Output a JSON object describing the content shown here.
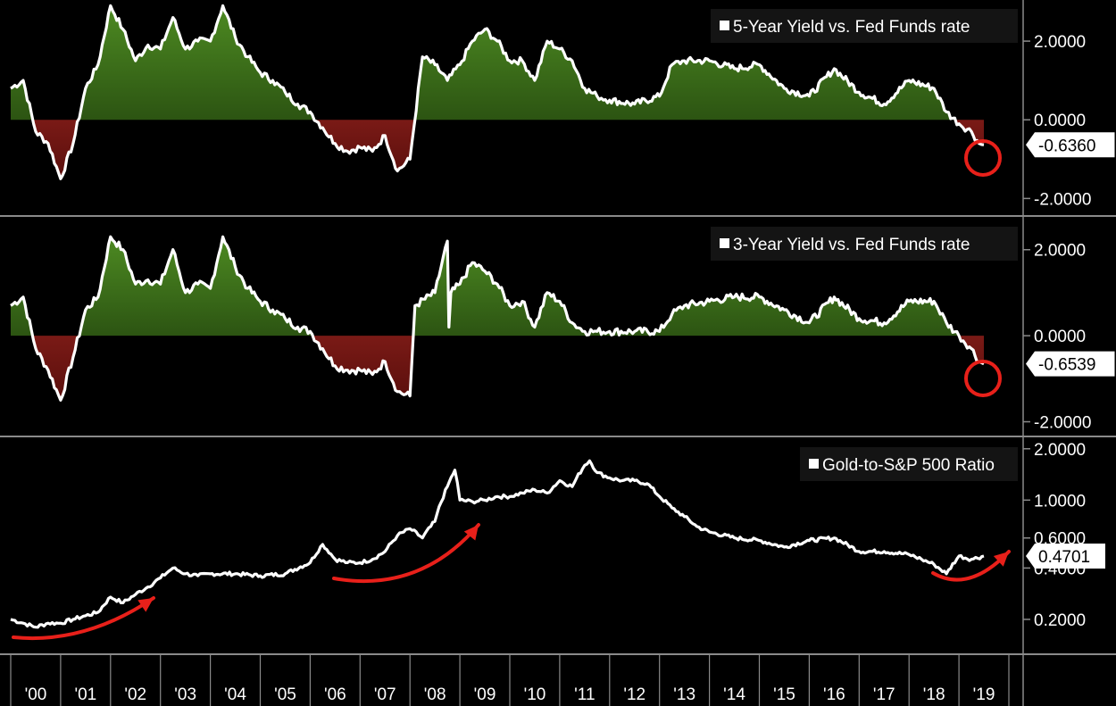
{
  "chart_data": [
    {
      "type": "area",
      "title": "5-Year Yield vs. Fed Funds rate",
      "ylim": [
        -2.4,
        3.0
      ],
      "y_ticks": [
        "2.0000",
        "0.0000",
        "-2.0000"
      ],
      "y_tick_values": [
        2,
        0,
        -2
      ],
      "last_value": -0.636,
      "last_label": "-0.6360",
      "x": [
        2000.0,
        2000.25,
        2000.5,
        2000.75,
        2001.0,
        2001.25,
        2001.5,
        2001.75,
        2002.0,
        2002.25,
        2002.5,
        2002.75,
        2003.0,
        2003.25,
        2003.5,
        2003.75,
        2004.0,
        2004.25,
        2004.5,
        2004.75,
        2005.0,
        2005.25,
        2005.5,
        2005.75,
        2006.0,
        2006.25,
        2006.5,
        2006.75,
        2007.0,
        2007.25,
        2007.5,
        2007.75,
        2008.0,
        2008.25,
        2008.5,
        2008.75,
        2009.0,
        2009.25,
        2009.5,
        2009.75,
        2010.0,
        2010.25,
        2010.5,
        2010.75,
        2011.0,
        2011.25,
        2011.5,
        2011.75,
        2012.0,
        2012.5,
        2013.0,
        2013.25,
        2013.5,
        2014.0,
        2014.5,
        2015.0,
        2015.5,
        2016.0,
        2016.5,
        2017.0,
        2017.5,
        2018.0,
        2018.5,
        2018.75,
        2019.0,
        2019.25,
        2019.4,
        2019.5
      ],
      "values": [
        0.8,
        1.0,
        -0.3,
        -0.6,
        -1.5,
        -0.6,
        0.8,
        1.4,
        2.9,
        2.3,
        1.5,
        1.9,
        1.8,
        2.6,
        1.8,
        2.0,
        2.0,
        2.9,
        2.1,
        1.6,
        1.2,
        1.0,
        0.7,
        0.4,
        0.2,
        -0.2,
        -0.6,
        -0.8,
        -0.7,
        -0.8,
        -0.4,
        -1.3,
        -1.0,
        1.6,
        1.4,
        1.0,
        1.4,
        2.0,
        2.3,
        2.0,
        1.5,
        1.5,
        1.0,
        2.0,
        1.8,
        1.5,
        0.8,
        0.6,
        0.5,
        0.4,
        0.6,
        1.4,
        1.5,
        1.5,
        1.3,
        1.4,
        0.8,
        0.6,
        1.3,
        0.7,
        0.4,
        1.0,
        0.8,
        0.2,
        -0.1,
        -0.3,
        -0.6,
        -0.636
      ]
    },
    {
      "type": "area",
      "title": "3-Year Yield vs. Fed Funds rate",
      "ylim": [
        -2.3,
        2.7
      ],
      "y_ticks": [
        "2.0000",
        "0.0000",
        "-2.0000"
      ],
      "y_tick_values": [
        2,
        0,
        -2
      ],
      "last_value": -0.6539,
      "last_label": "-0.6539",
      "x": [
        2000.0,
        2000.25,
        2000.5,
        2000.75,
        2001.0,
        2001.25,
        2001.5,
        2001.75,
        2002.0,
        2002.25,
        2002.5,
        2002.75,
        2003.0,
        2003.25,
        2003.5,
        2003.75,
        2004.0,
        2004.25,
        2004.5,
        2004.75,
        2005.0,
        2005.25,
        2005.5,
        2005.75,
        2006.0,
        2006.25,
        2006.5,
        2006.75,
        2007.0,
        2007.25,
        2007.5,
        2007.75,
        2008.0,
        2008.1,
        2008.5,
        2008.75,
        2008.78,
        2008.82,
        2009.0,
        2009.25,
        2009.5,
        2009.75,
        2010.0,
        2010.25,
        2010.5,
        2010.75,
        2011.0,
        2011.25,
        2011.5,
        2011.75,
        2012.0,
        2012.5,
        2013.0,
        2013.25,
        2013.5,
        2014.0,
        2014.5,
        2015.0,
        2015.5,
        2016.0,
        2016.5,
        2017.0,
        2017.5,
        2018.0,
        2018.5,
        2018.75,
        2019.0,
        2019.25,
        2019.4,
        2019.5
      ],
      "values": [
        0.7,
        0.9,
        -0.3,
        -0.8,
        -1.5,
        -0.5,
        0.6,
        0.9,
        2.3,
        2.0,
        1.2,
        1.3,
        1.2,
        2.0,
        1.0,
        1.2,
        1.1,
        2.3,
        1.6,
        1.1,
        0.8,
        0.6,
        0.4,
        0.2,
        0.1,
        -0.3,
        -0.7,
        -0.8,
        -0.8,
        -0.9,
        -0.6,
        -1.3,
        -1.4,
        0.7,
        1.0,
        2.2,
        0.2,
        1.0,
        1.2,
        1.7,
        1.5,
        1.2,
        0.7,
        0.8,
        0.2,
        1.0,
        0.8,
        0.3,
        0.1,
        0.1,
        0.1,
        0.1,
        0.1,
        0.5,
        0.7,
        0.8,
        0.9,
        0.9,
        0.6,
        0.3,
        0.9,
        0.4,
        0.3,
        0.8,
        0.8,
        0.3,
        0.0,
        -0.3,
        -0.6,
        -0.6539
      ]
    },
    {
      "type": "line",
      "title": "Gold-to-S&P 500 Ratio",
      "yscale": "log",
      "ylim": [
        0.128,
        2.25
      ],
      "y_ticks": [
        "2.0000",
        "1.0000",
        "0.6000",
        "0.4000",
        "0.2000"
      ],
      "y_tick_values": [
        2,
        1,
        0.6,
        0.4,
        0.2
      ],
      "last_value": 0.4701,
      "last_label": "0.4701",
      "x": [
        2000.0,
        2000.25,
        2000.5,
        2000.75,
        2001.0,
        2001.25,
        2001.5,
        2001.75,
        2002.0,
        2002.25,
        2002.5,
        2002.75,
        2003.0,
        2003.25,
        2003.5,
        2003.75,
        2004.0,
        2004.5,
        2005.0,
        2005.5,
        2006.0,
        2006.25,
        2006.5,
        2006.75,
        2007.0,
        2007.25,
        2007.5,
        2007.75,
        2008.0,
        2008.25,
        2008.5,
        2008.75,
        2008.9,
        2009.0,
        2009.25,
        2009.5,
        2009.75,
        2010.0,
        2010.25,
        2010.5,
        2010.75,
        2011.0,
        2011.25,
        2011.5,
        2011.6,
        2011.75,
        2012.0,
        2012.25,
        2012.5,
        2012.75,
        2013.0,
        2013.25,
        2013.5,
        2013.75,
        2014.0,
        2014.5,
        2015.0,
        2015.5,
        2016.0,
        2016.5,
        2017.0,
        2017.5,
        2018.0,
        2018.25,
        2018.5,
        2018.75,
        2019.0,
        2019.25,
        2019.5
      ],
      "values": [
        0.2,
        0.19,
        0.18,
        0.19,
        0.19,
        0.2,
        0.21,
        0.22,
        0.27,
        0.25,
        0.28,
        0.31,
        0.35,
        0.4,
        0.37,
        0.36,
        0.37,
        0.37,
        0.36,
        0.37,
        0.43,
        0.55,
        0.45,
        0.43,
        0.43,
        0.45,
        0.5,
        0.62,
        0.68,
        0.6,
        0.75,
        1.2,
        1.5,
        1.0,
        0.98,
        1.0,
        1.05,
        1.05,
        1.1,
        1.15,
        1.1,
        1.3,
        1.2,
        1.6,
        1.7,
        1.45,
        1.35,
        1.3,
        1.3,
        1.25,
        1.05,
        0.9,
        0.8,
        0.7,
        0.65,
        0.6,
        0.58,
        0.53,
        0.58,
        0.6,
        0.5,
        0.5,
        0.48,
        0.45,
        0.42,
        0.37,
        0.47,
        0.45,
        0.4701
      ]
    }
  ],
  "x_axis": {
    "labels": [
      "'00",
      "'01",
      "'02",
      "'03",
      "'04",
      "'05",
      "'06",
      "'07",
      "'08",
      "'09",
      "'10",
      "'11",
      "'12",
      "'13",
      "'14",
      "'15",
      "'16",
      "'17",
      "'18",
      "'19"
    ],
    "start_year": 2000
  },
  "colors": {
    "background": "#000000",
    "line": "#ffffff",
    "positive_fill": "#3a6b1a",
    "negative_fill": "#6e1512",
    "annotation": "#e8201a",
    "panel_divider": "#8a8a8a",
    "label_box": "#ffffff"
  },
  "annotations": {
    "circles": 2,
    "arrows": 4
  }
}
